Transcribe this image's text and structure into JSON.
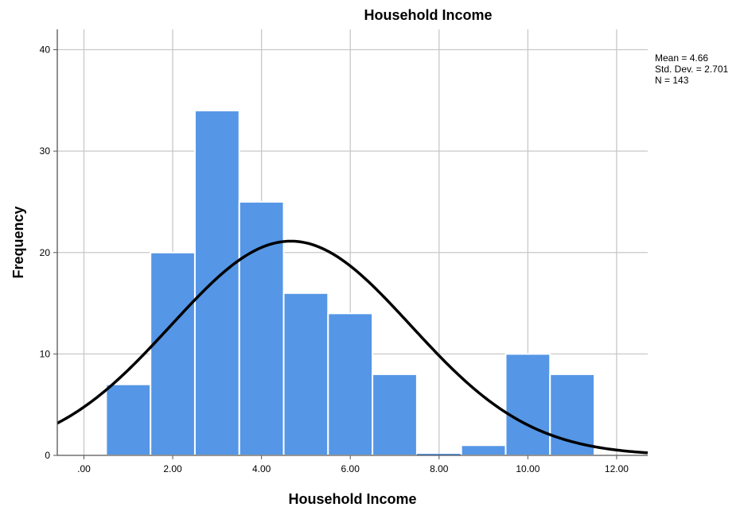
{
  "chart_data": {
    "type": "bar",
    "title": "Household Income",
    "xlabel": "Household Income",
    "ylabel": "Frequency",
    "xlim": [
      -0.6,
      12.7
    ],
    "ylim": [
      0,
      42
    ],
    "x_ticks": [
      ".00",
      "2.00",
      "4.00",
      "6.00",
      "8.00",
      "10.00",
      "12.00"
    ],
    "x_tick_values": [
      0,
      2,
      4,
      6,
      8,
      10,
      12
    ],
    "y_ticks": [
      "0",
      "10",
      "20",
      "30",
      "40"
    ],
    "y_tick_values": [
      0,
      10,
      20,
      30,
      40
    ],
    "bin_width": 1,
    "bins": [
      {
        "center": 1,
        "count": 7
      },
      {
        "center": 2,
        "count": 20
      },
      {
        "center": 3,
        "count": 34
      },
      {
        "center": 4,
        "count": 25
      },
      {
        "center": 5,
        "count": 16
      },
      {
        "center": 6,
        "count": 14
      },
      {
        "center": 7,
        "count": 8
      },
      {
        "center": 8,
        "count": 0
      },
      {
        "center": 9,
        "count": 1
      },
      {
        "center": 10,
        "count": 10
      },
      {
        "center": 11,
        "count": 8
      }
    ],
    "normal_curve": {
      "mean": 4.66,
      "std_dev": 2.701,
      "n": 143
    },
    "stats": [
      "Mean = 4.66",
      "Std. Dev. = 2.701",
      "N = 143"
    ],
    "grid": true,
    "bar_color": "#5596e6",
    "bar_edge_color": "#ffffff",
    "curve_color": "#000000",
    "grid_color": "#c8c8c8"
  }
}
